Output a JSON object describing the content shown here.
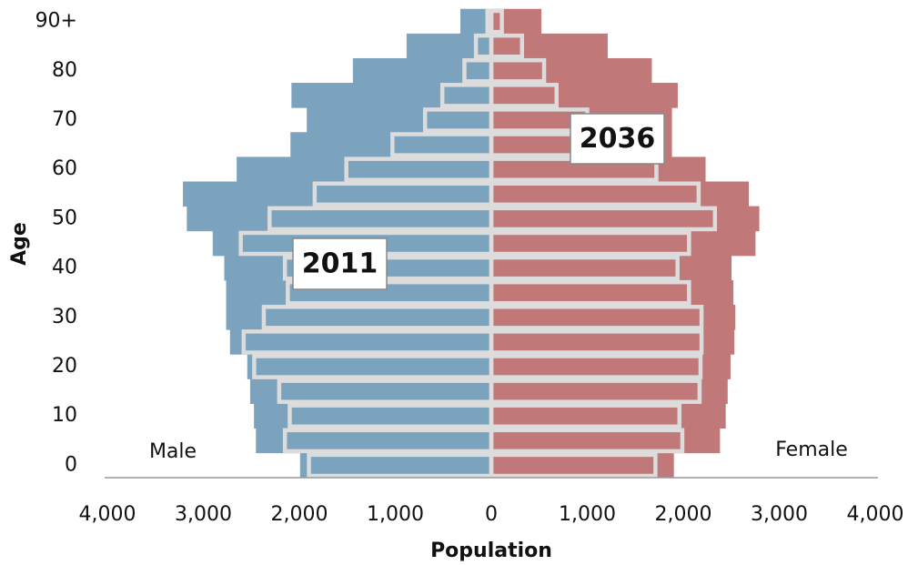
{
  "chart_data": {
    "type": "population-pyramid",
    "x_label": "Population",
    "y_label": "Age",
    "sides": [
      "Male",
      "Female"
    ],
    "side_colors": [
      "#7ba3be",
      "#c07878"
    ],
    "categories": [
      "0",
      null,
      "10",
      null,
      "20",
      null,
      "30",
      null,
      "40",
      null,
      "50",
      null,
      "60",
      null,
      "70",
      null,
      "80",
      null,
      "90+"
    ],
    "series": [
      {
        "name": "2036",
        "style": "filled",
        "male": [
          1990,
          2450,
          2470,
          2510,
          2540,
          2720,
          2760,
          2760,
          2780,
          2900,
          3170,
          3210,
          2650,
          2090,
          1920,
          2080,
          1440,
          880,
          320
        ],
        "female": [
          1900,
          2380,
          2440,
          2460,
          2490,
          2530,
          2540,
          2520,
          2500,
          2750,
          2790,
          2680,
          2230,
          1880,
          1880,
          1940,
          1670,
          1210,
          520
        ]
      },
      {
        "name": "2011",
        "style": "outline",
        "color": "#dcdcdc",
        "male": [
          1900,
          2150,
          2100,
          2210,
          2470,
          2580,
          2370,
          2120,
          2150,
          2610,
          2310,
          1840,
          1510,
          1030,
          690,
          510,
          280,
          160,
          40
        ],
        "female": [
          1710,
          1990,
          1960,
          2170,
          2180,
          2190,
          2190,
          2060,
          1940,
          2060,
          2330,
          2160,
          1720,
          1400,
          1000,
          680,
          550,
          320,
          110
        ]
      }
    ],
    "xlim": [
      -4000,
      4000
    ],
    "xticks": [
      {
        "value": -4000,
        "label": "4,000"
      },
      {
        "value": -3000,
        "label": "3,000"
      },
      {
        "value": -2000,
        "label": "2,000"
      },
      {
        "value": -1000,
        "label": "1,000"
      },
      0,
      {
        "value": 1000,
        "label": "1,000"
      },
      {
        "value": 2000,
        "label": "2,000"
      },
      {
        "value": 3000,
        "label": "3,000"
      },
      {
        "value": 4000,
        "label": "4,000"
      }
    ]
  }
}
